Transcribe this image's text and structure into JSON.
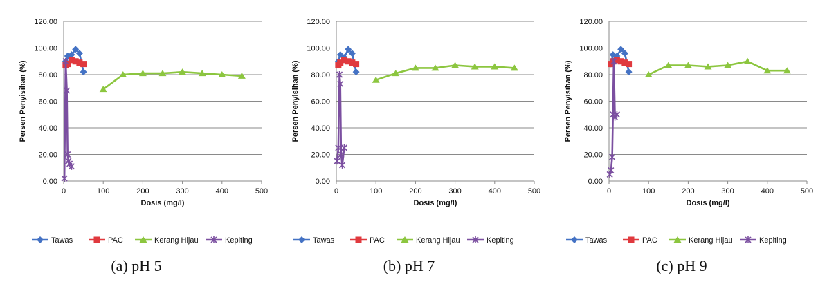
{
  "chart_data": [
    {
      "type": "line",
      "caption": "(a) pH 5",
      "xlabel": "Dosis (mg/l)",
      "ylabel": "Persen Penyisihan (%)",
      "xlim": [
        0,
        500
      ],
      "ylim": [
        0,
        120
      ],
      "xticks": [
        "0",
        "100",
        "200",
        "300",
        "400",
        "500"
      ],
      "yticks": [
        "0.00",
        "20.00",
        "40.00",
        "60.00",
        "80.00",
        "100.00",
        "120.00"
      ],
      "grid": "horizontal",
      "legend": "bottom",
      "series": [
        {
          "name": "Tawas",
          "color": "#4472C4",
          "marker": "diamond",
          "x": [
            5,
            10,
            20,
            30,
            40,
            50
          ],
          "y": [
            90,
            94,
            95,
            99,
            96,
            82
          ]
        },
        {
          "name": "PAC",
          "color": "#E0393E",
          "marker": "square",
          "x": [
            5,
            10,
            20,
            30,
            40,
            50
          ],
          "y": [
            87,
            88,
            91,
            90,
            89,
            88
          ]
        },
        {
          "name": "Kerang Hijau",
          "color": "#8CC63F",
          "marker": "triangle",
          "x": [
            100,
            150,
            200,
            250,
            300,
            350,
            400,
            450
          ],
          "y": [
            69,
            80,
            81,
            81,
            82,
            81,
            80,
            79
          ]
        },
        {
          "name": "Kepiting",
          "color": "#7B4FA0",
          "marker": "x",
          "x": [
            2,
            5,
            8,
            10,
            12,
            15,
            20
          ],
          "y": [
            2,
            90,
            68,
            20,
            15,
            13,
            11
          ]
        }
      ]
    },
    {
      "type": "line",
      "caption": "(b) pH 7",
      "xlabel": "Dosis (mg/l)",
      "ylabel": "Persen Penyisihan (%)",
      "xlim": [
        0,
        500
      ],
      "ylim": [
        0,
        120
      ],
      "xticks": [
        "0",
        "100",
        "200",
        "300",
        "400",
        "500"
      ],
      "yticks": [
        "0.00",
        "20.00",
        "40.00",
        "60.00",
        "80.00",
        "100.00",
        "120.00"
      ],
      "grid": "horizontal",
      "legend": "bottom",
      "series": [
        {
          "name": "Tawas",
          "color": "#4472C4",
          "marker": "diamond",
          "x": [
            5,
            10,
            20,
            30,
            40,
            50
          ],
          "y": [
            90,
            95,
            93,
            99,
            96,
            82
          ]
        },
        {
          "name": "PAC",
          "color": "#E0393E",
          "marker": "square",
          "x": [
            5,
            10,
            20,
            30,
            40,
            50
          ],
          "y": [
            87,
            89,
            91,
            90,
            89,
            88
          ]
        },
        {
          "name": "Kerang Hijau",
          "color": "#8CC63F",
          "marker": "triangle",
          "x": [
            100,
            150,
            200,
            250,
            300,
            350,
            400,
            450
          ],
          "y": [
            76,
            81,
            85,
            85,
            87,
            86,
            86,
            85
          ]
        },
        {
          "name": "Kepiting",
          "color": "#7B4FA0",
          "marker": "x",
          "x": [
            2,
            5,
            8,
            10,
            12,
            15,
            20
          ],
          "y": [
            15,
            25,
            80,
            73,
            20,
            12,
            25
          ]
        }
      ]
    },
    {
      "type": "line",
      "caption": "(c) pH 9",
      "xlabel": "Dosis (mg/l)",
      "ylabel": "Persen Penyisihan (%)",
      "xlim": [
        0,
        500
      ],
      "ylim": [
        0,
        120
      ],
      "xticks": [
        "0",
        "100",
        "200",
        "300",
        "400",
        "500"
      ],
      "yticks": [
        "0.00",
        "20.00",
        "40.00",
        "60.00",
        "80.00",
        "100.00",
        "120.00"
      ],
      "grid": "horizontal",
      "legend": "bottom",
      "series": [
        {
          "name": "Tawas",
          "color": "#4472C4",
          "marker": "diamond",
          "x": [
            5,
            10,
            20,
            30,
            40,
            50
          ],
          "y": [
            88,
            95,
            94,
            99,
            96,
            82
          ]
        },
        {
          "name": "PAC",
          "color": "#E0393E",
          "marker": "square",
          "x": [
            5,
            10,
            20,
            30,
            40,
            50
          ],
          "y": [
            88,
            90,
            91,
            90,
            89,
            88
          ]
        },
        {
          "name": "Kerang Hijau",
          "color": "#8CC63F",
          "marker": "triangle",
          "x": [
            100,
            150,
            200,
            250,
            300,
            350,
            400,
            450
          ],
          "y": [
            80,
            87,
            87,
            86,
            87,
            90,
            83,
            83
          ]
        },
        {
          "name": "Kepiting",
          "color": "#7B4FA0",
          "marker": "x",
          "x": [
            2,
            5,
            8,
            10,
            12,
            15,
            20
          ],
          "y": [
            5,
            8,
            18,
            50,
            90,
            48,
            50
          ]
        }
      ]
    }
  ]
}
